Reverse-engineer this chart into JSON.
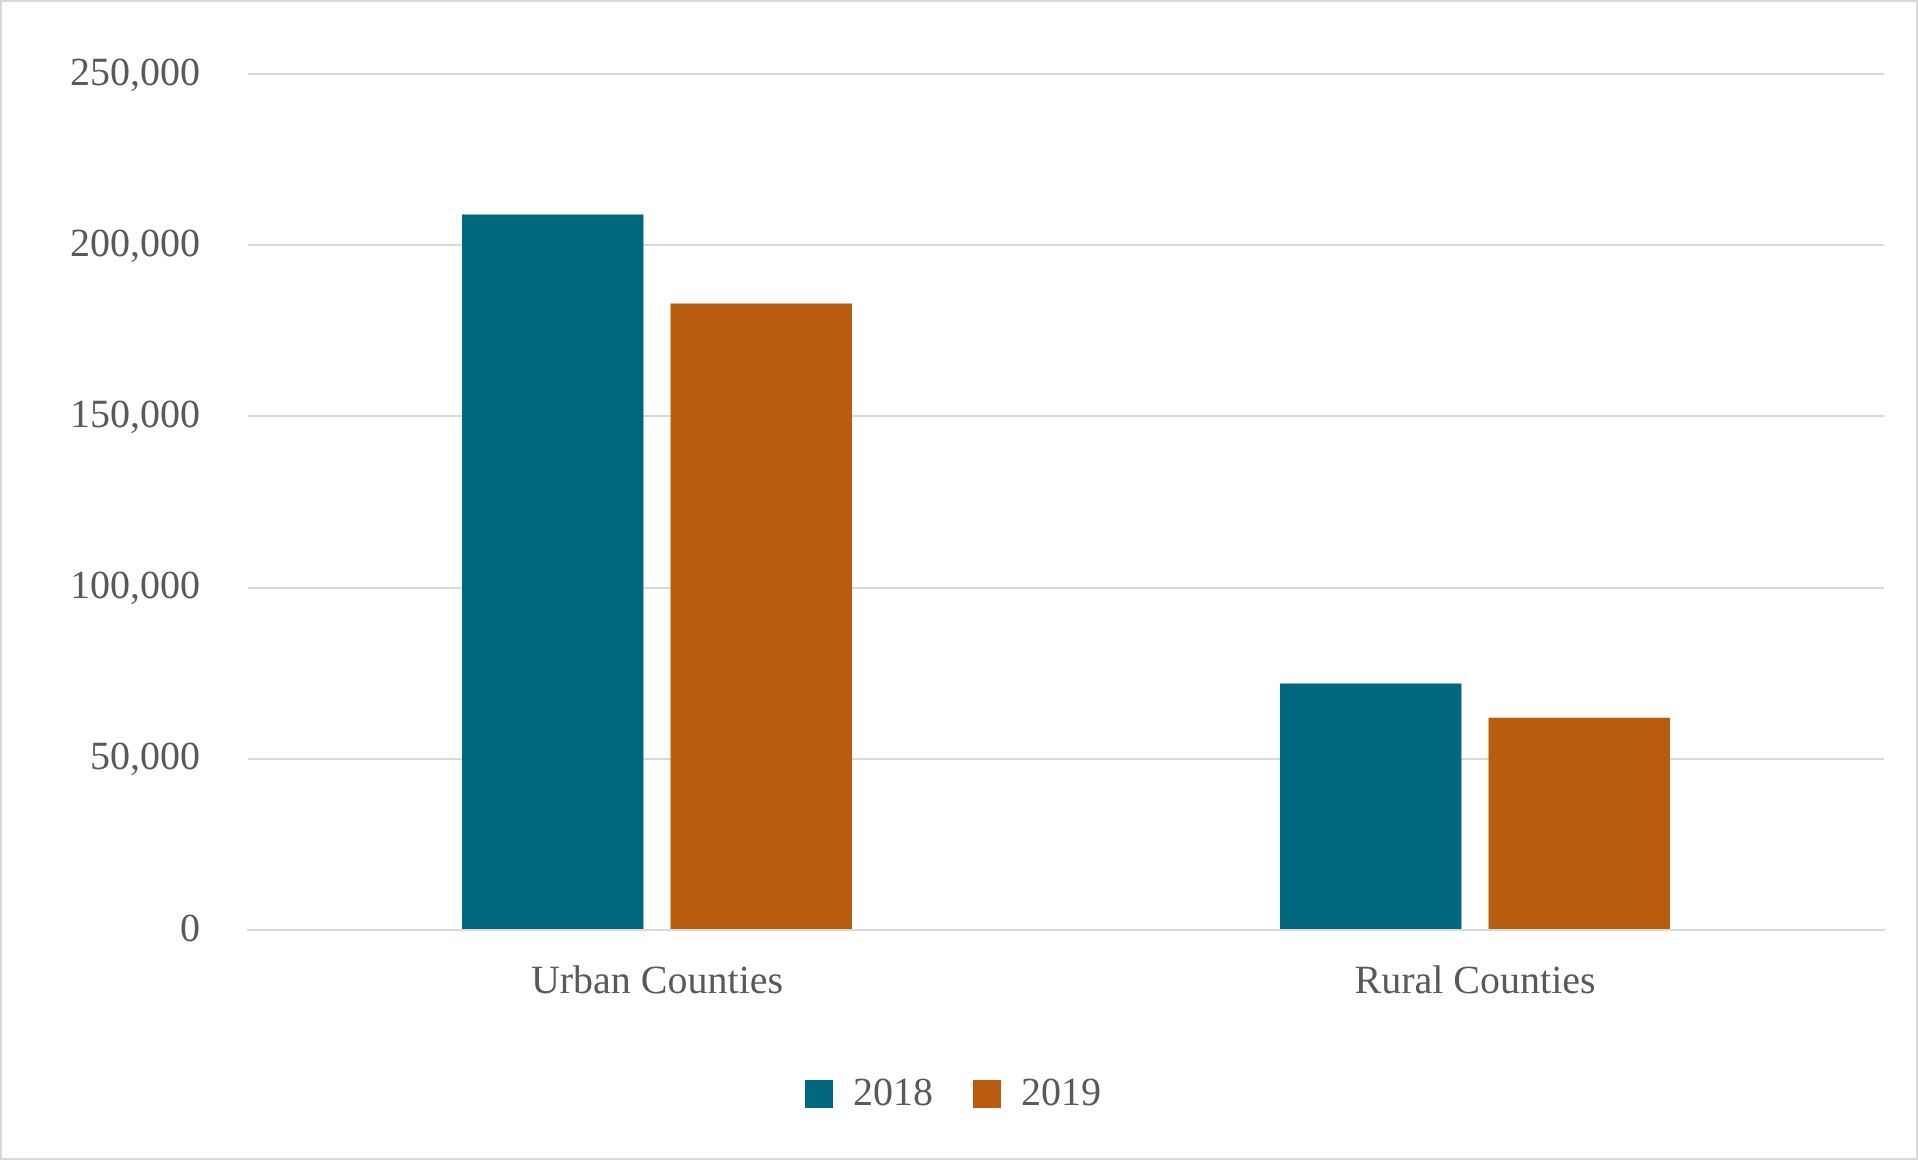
{
  "chart_data": {
    "type": "bar",
    "categories": [
      "Urban Counties",
      "Rural Counties"
    ],
    "series": [
      {
        "name": "2018",
        "color": "#00677f",
        "values": [
          209000,
          72000
        ]
      },
      {
        "name": "2019",
        "color": "#b85c10",
        "values": [
          183000,
          62000
        ]
      }
    ],
    "ylim": [
      0,
      250000
    ],
    "yticks": [
      {
        "value": 0,
        "label": "0"
      },
      {
        "value": 50000,
        "label": "50,000"
      },
      {
        "value": 100000,
        "label": "100,000"
      },
      {
        "value": 150000,
        "label": "150,000"
      },
      {
        "value": 200000,
        "label": "200,000"
      },
      {
        "value": 250000,
        "label": "250,000"
      }
    ],
    "grid": "y",
    "legend": "bottom"
  }
}
